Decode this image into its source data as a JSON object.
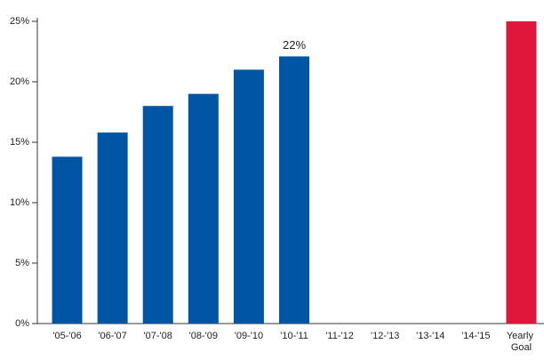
{
  "chart_data": {
    "type": "bar",
    "categories": [
      "'05-'06",
      "'06-'07",
      "'07-'08",
      "'08-'09",
      "'09-'10",
      "'10-'11",
      "'11-'12",
      "'12-'13",
      "'13-'14",
      "'14-'15",
      "Yearly Goal"
    ],
    "values": [
      13.8,
      15.8,
      18.0,
      19.0,
      21.0,
      22.1,
      null,
      null,
      null,
      null,
      25
    ],
    "value_labels": [
      null,
      null,
      null,
      null,
      null,
      "22%",
      null,
      null,
      null,
      null,
      null
    ],
    "colors": [
      "#0055a5",
      "#0055a5",
      "#0055a5",
      "#0055a5",
      "#0055a5",
      "#0055a5",
      null,
      null,
      null,
      null,
      "#e0173a"
    ],
    "ylim": [
      0,
      25
    ],
    "yticks": [
      {
        "value": 0,
        "label": "0%"
      },
      {
        "value": 5,
        "label": "5%"
      },
      {
        "value": 10,
        "label": "10%"
      },
      {
        "value": 15,
        "label": "15%"
      },
      {
        "value": 20,
        "label": "20%"
      },
      {
        "value": 25,
        "label": "25%"
      }
    ],
    "grid": false
  }
}
